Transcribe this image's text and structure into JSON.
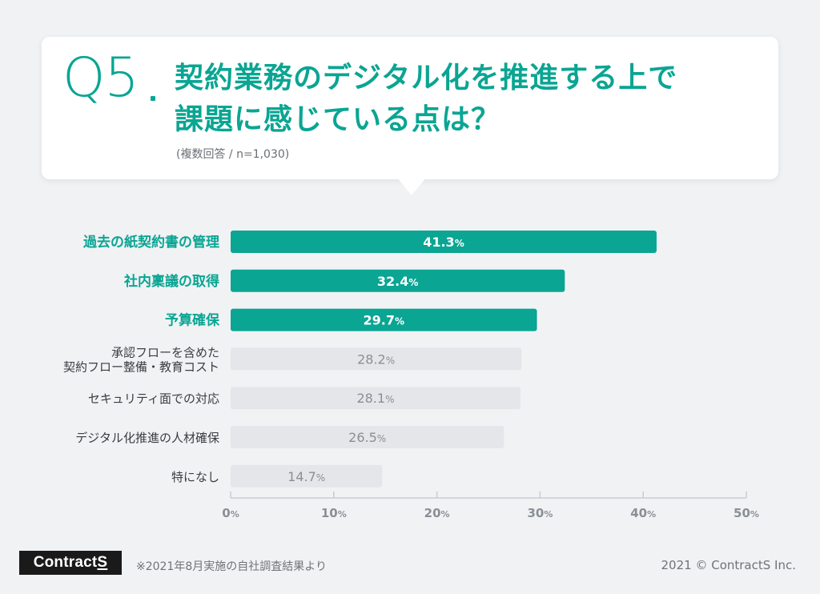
{
  "header": {
    "question_number": "Q5",
    "title_line1": "契約業務のデジタル化を推進する上で",
    "title_line2": "課題に感じている点は？",
    "subtitle": "(複数回答 / n=1,030)"
  },
  "colors": {
    "accent": "#0aa593",
    "muted_bar": "#e4e6ea",
    "muted_text": "#8a8f96",
    "label_text": "#3a3d42",
    "background": "#f1f2f4"
  },
  "chart_data": {
    "type": "bar",
    "orientation": "horizontal",
    "categories": [
      "過去の紙契約書の管理",
      "社内稟議の取得",
      "予算確保",
      "承認フローを含めた\n契約フロー整備・教育コスト",
      "セキュリティ面での対応",
      "デジタル化推進の人材確保",
      "特になし"
    ],
    "values": [
      41.3,
      32.4,
      29.7,
      28.2,
      28.1,
      26.5,
      14.7
    ],
    "value_labels": [
      "41.3",
      "32.4",
      "29.7",
      "28.2",
      "28.1",
      "26.5",
      "14.7"
    ],
    "highlighted": [
      true,
      true,
      true,
      false,
      false,
      false,
      false
    ],
    "value_unit": "%",
    "xlim": [
      0,
      50
    ],
    "xticks": [
      0,
      10,
      20,
      30,
      40,
      50
    ],
    "xtick_labels": [
      "0",
      "10",
      "20",
      "30",
      "40",
      "50"
    ]
  },
  "footer": {
    "logo_text": "Contract",
    "logo_text_s": "S",
    "note": "※2021年8月実施の自社調査結果より",
    "copyright": "2021 © ContractS Inc."
  }
}
